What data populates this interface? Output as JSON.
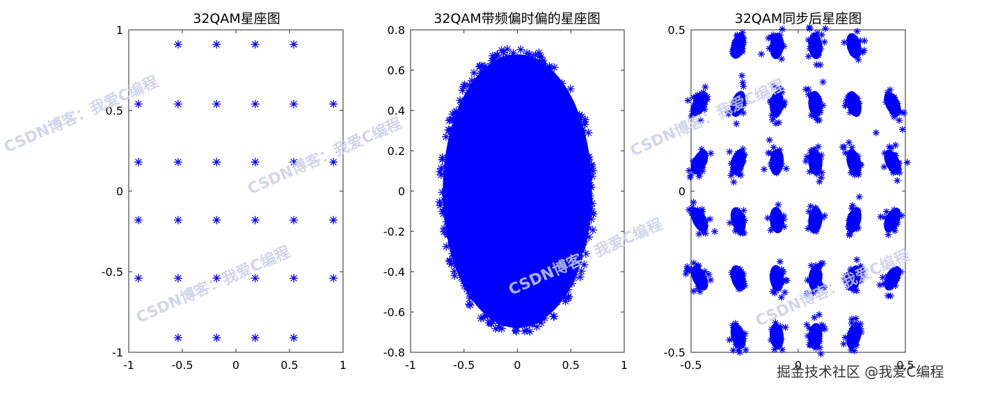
{
  "chart_data": [
    {
      "type": "scatter",
      "title": "32QAM星座图",
      "xlim": [
        -1,
        1
      ],
      "ylim": [
        -1,
        1
      ],
      "x_ticks": [
        "-1",
        "-0.5",
        "0",
        "0.5",
        "1"
      ],
      "y_ticks": [
        "1",
        "0.5",
        "0",
        "-0.5",
        "-1"
      ],
      "marker": "*",
      "marker_color": "#0000ff",
      "points": [
        [
          -0.54,
          0.91
        ],
        [
          -0.18,
          0.91
        ],
        [
          0.18,
          0.91
        ],
        [
          0.54,
          0.91
        ],
        [
          -0.91,
          0.54
        ],
        [
          -0.54,
          0.54
        ],
        [
          -0.18,
          0.54
        ],
        [
          0.18,
          0.54
        ],
        [
          0.54,
          0.54
        ],
        [
          0.91,
          0.54
        ],
        [
          -0.91,
          0.18
        ],
        [
          -0.54,
          0.18
        ],
        [
          -0.18,
          0.18
        ],
        [
          0.18,
          0.18
        ],
        [
          0.54,
          0.18
        ],
        [
          0.91,
          0.18
        ],
        [
          -0.91,
          -0.18
        ],
        [
          -0.54,
          -0.18
        ],
        [
          -0.18,
          -0.18
        ],
        [
          0.18,
          -0.18
        ],
        [
          0.54,
          -0.18
        ],
        [
          0.91,
          -0.18
        ],
        [
          -0.91,
          -0.54
        ],
        [
          -0.54,
          -0.54
        ],
        [
          -0.18,
          -0.54
        ],
        [
          0.18,
          -0.54
        ],
        [
          0.54,
          -0.54
        ],
        [
          0.91,
          -0.54
        ],
        [
          -0.54,
          -0.91
        ],
        [
          -0.18,
          -0.91
        ],
        [
          0.18,
          -0.91
        ],
        [
          0.54,
          -0.91
        ]
      ]
    },
    {
      "type": "scatter",
      "title": "32QAM带频偏时偏的星座图",
      "xlim": [
        -1,
        1
      ],
      "ylim": [
        -0.8,
        0.8
      ],
      "x_ticks": [
        "-1",
        "-0.5",
        "0",
        "0.5",
        "1"
      ],
      "y_ticks": [
        "0.8",
        "0.6",
        "0.4",
        "0.2",
        "0",
        "-0.2",
        "-0.4",
        "-0.6",
        "-0.8"
      ],
      "marker": "*",
      "marker_color": "#0000ff",
      "cloud": {
        "center": [
          0.0,
          0.0
        ],
        "x_extent": [
          -0.72,
          0.72
        ],
        "y_extent": [
          -0.7,
          0.7
        ]
      }
    },
    {
      "type": "scatter",
      "title": "32QAM同步后星座图",
      "xlim": [
        -0.5,
        0.5
      ],
      "ylim": [
        -0.5,
        0.5
      ],
      "x_ticks": [
        "-0.5",
        "0",
        "0.5"
      ],
      "y_ticks": [
        "0.5",
        "0",
        "-0.5"
      ],
      "marker": "*",
      "marker_color": "#0000ff",
      "clusters": [
        [
          -0.28,
          0.45
        ],
        [
          -0.1,
          0.45
        ],
        [
          0.08,
          0.45
        ],
        [
          0.26,
          0.45
        ],
        [
          -0.46,
          0.27
        ],
        [
          -0.28,
          0.27
        ],
        [
          -0.1,
          0.27
        ],
        [
          0.08,
          0.27
        ],
        [
          0.26,
          0.27
        ],
        [
          0.44,
          0.27
        ],
        [
          -0.46,
          0.09
        ],
        [
          -0.28,
          0.09
        ],
        [
          -0.1,
          0.09
        ],
        [
          0.08,
          0.09
        ],
        [
          0.26,
          0.09
        ],
        [
          0.44,
          0.09
        ],
        [
          -0.46,
          -0.09
        ],
        [
          -0.28,
          -0.09
        ],
        [
          -0.1,
          -0.09
        ],
        [
          0.08,
          -0.09
        ],
        [
          0.26,
          -0.09
        ],
        [
          0.44,
          -0.09
        ],
        [
          -0.46,
          -0.27
        ],
        [
          -0.28,
          -0.27
        ],
        [
          -0.1,
          -0.27
        ],
        [
          0.08,
          -0.27
        ],
        [
          0.26,
          -0.27
        ],
        [
          0.44,
          -0.27
        ],
        [
          -0.28,
          -0.45
        ],
        [
          -0.1,
          -0.45
        ],
        [
          0.08,
          -0.45
        ],
        [
          0.26,
          -0.45
        ]
      ]
    }
  ],
  "watermarks": [
    "CSDN博客：我爱C编程",
    "掘金技术社区 @我爱C编程"
  ]
}
